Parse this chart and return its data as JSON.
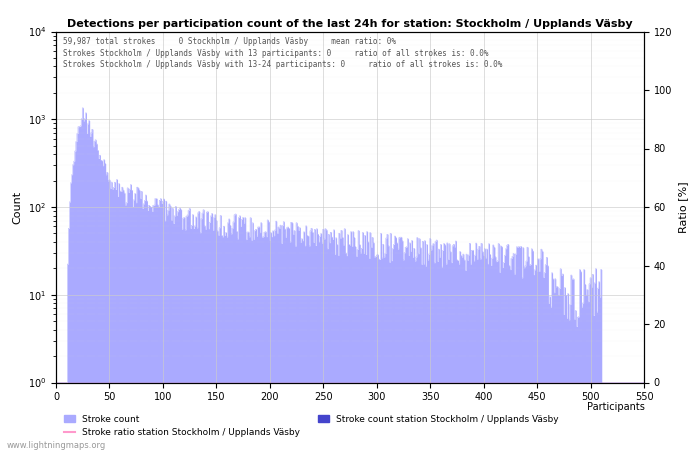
{
  "title": "Detections per participation count of the last 24h for station: Stockholm / Upplands Väsby",
  "annotation_line1": "59,987 total strokes     0 Stockholm / Upplands Väsby     mean ratio: 0%",
  "annotation_line2": "Strokes Stockholm / Upplands Väsby with 13 participants: 0     ratio of all strokes is: 0.0%",
  "annotation_line3": "Strokes Stockholm / Upplands Väsby with 13-24 participants: 0     ratio of all strokes is: 0.0%",
  "xlabel": "Participants",
  "ylabel_left": "Count",
  "ylabel_right": "Ratio [%]",
  "xlim": [
    0,
    550
  ],
  "ylim_left": [
    1,
    10000
  ],
  "ylim_right": [
    0,
    120
  ],
  "bar_color_main": "#aaaaff",
  "bar_color_station": "#4444cc",
  "ratio_line_color": "#ff99cc",
  "watermark": "www.lightningmaps.org",
  "legend_stroke_count": "Stroke count",
  "legend_stroke_count_station": "Stroke count station Stockholm / Upplands Väsby",
  "legend_ratio": "Stroke ratio station Stockholm / Upplands Väsby",
  "xticks": [
    0,
    50,
    100,
    150,
    200,
    250,
    300,
    350,
    400,
    450,
    500,
    550
  ],
  "yticks_right": [
    0,
    20,
    40,
    60,
    80,
    100,
    120
  ]
}
